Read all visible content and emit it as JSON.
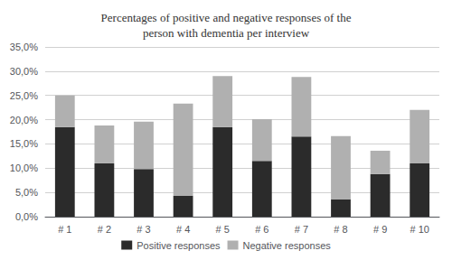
{
  "chart_data": {
    "type": "bar",
    "stacked": true,
    "title": "Percentages of positive and negative responses of the\nperson with dementia per interview",
    "categories": [
      "# 1",
      "# 2",
      "# 3",
      "# 4",
      "# 5",
      "# 6",
      "# 7",
      "# 8",
      "# 9",
      "# 10"
    ],
    "series": [
      {
        "name": "Positive responses",
        "color": "#2b2b2b",
        "values": [
          18.5,
          11.0,
          9.8,
          4.3,
          18.5,
          11.5,
          16.5,
          3.6,
          8.8,
          11.0
        ]
      },
      {
        "name": "Negative responses",
        "color": "#b0b0b0",
        "values": [
          6.5,
          7.8,
          9.8,
          19.0,
          10.5,
          8.6,
          12.3,
          13.0,
          4.8,
          11.0
        ]
      }
    ],
    "ylim": [
      0,
      35
    ],
    "yticks": [
      {
        "value": 0,
        "label": "0,0%"
      },
      {
        "value": 5,
        "label": "5,0%"
      },
      {
        "value": 10,
        "label": "10,0%"
      },
      {
        "value": 15,
        "label": "15,0%"
      },
      {
        "value": 20,
        "label": "20,0%"
      },
      {
        "value": 25,
        "label": "25,0%"
      },
      {
        "value": 30,
        "label": "30,0%"
      },
      {
        "value": 35,
        "label": "35,0%"
      }
    ],
    "grid": true,
    "legend": "bottom"
  }
}
